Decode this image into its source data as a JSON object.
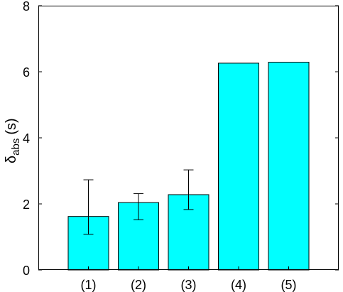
{
  "chart_data": {
    "type": "bar",
    "title": "",
    "xlabel": "",
    "ylabel": {
      "symbol": "δ",
      "subscript": "abs",
      "unit": "(s)"
    },
    "categories": [
      "(1)",
      "(2)",
      "(3)",
      "(4)",
      "(5)"
    ],
    "values": [
      1.62,
      2.04,
      2.28,
      6.26,
      6.29
    ],
    "error_low": [
      1.08,
      1.52,
      1.83,
      6.26,
      6.29
    ],
    "error_high": [
      2.73,
      2.31,
      3.03,
      6.26,
      6.29
    ],
    "ylim": [
      0,
      8
    ],
    "yticks": [
      "0",
      "2",
      "4",
      "6",
      "8"
    ],
    "grid": false,
    "bar_color": "#00ffff",
    "edge_color": "#000000"
  }
}
